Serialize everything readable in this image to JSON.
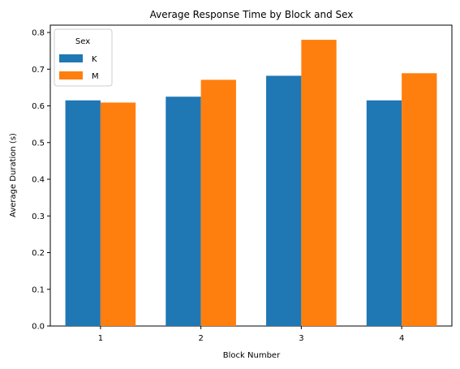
{
  "chart_data": {
    "type": "bar",
    "title": "Average Response Time by Block and Sex",
    "xlabel": "Block Number",
    "ylabel": "Average Duration (s)",
    "categories": [
      "1",
      "2",
      "3",
      "4"
    ],
    "series": [
      {
        "name": "K",
        "color": "#1f77b4",
        "values": [
          0.615,
          0.625,
          0.682,
          0.615
        ]
      },
      {
        "name": "M",
        "color": "#ff7f0e",
        "values": [
          0.609,
          0.671,
          0.78,
          0.689
        ]
      }
    ],
    "ylim": [
      0,
      0.82
    ],
    "yticks": [
      "0.0",
      "0.1",
      "0.2",
      "0.3",
      "0.4",
      "0.5",
      "0.6",
      "0.7",
      "0.8"
    ],
    "grid": false,
    "legend": {
      "title": "Sex",
      "placement": "top-left"
    }
  }
}
